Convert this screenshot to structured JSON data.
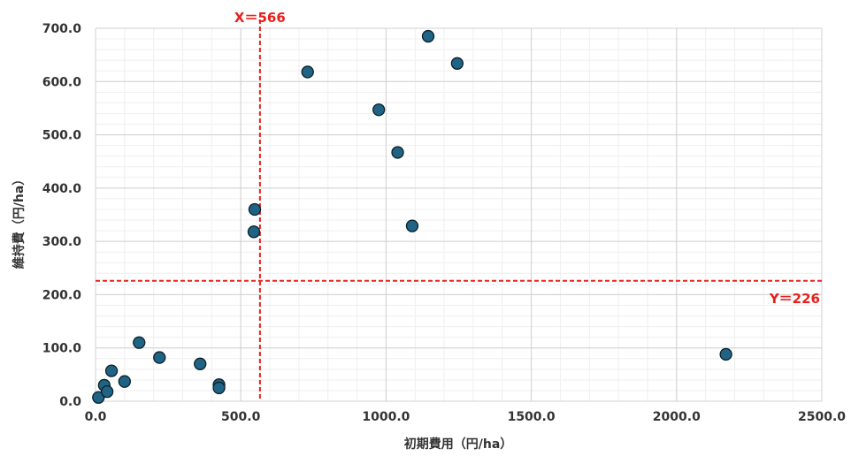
{
  "chart_data": {
    "type": "scatter",
    "title": "",
    "xlabel": "初期費用（円/ha）",
    "ylabel": "維持費（円/ha）",
    "xlim": [
      0,
      2500
    ],
    "ylim": [
      0,
      700
    ],
    "x_ticks": [
      "0.0",
      "500.0",
      "1000.0",
      "1500.0",
      "2000.0",
      "2500.0"
    ],
    "y_ticks": [
      "0.0",
      "100.0",
      "200.0",
      "300.0",
      "400.0",
      "500.0",
      "600.0",
      "700.0"
    ],
    "grid": true,
    "marker_color": "#1f6485",
    "series": [
      {
        "points": [
          [
            10,
            7
          ],
          [
            30,
            30
          ],
          [
            40,
            18
          ],
          [
            55,
            57
          ],
          [
            100,
            37
          ],
          [
            150,
            110
          ],
          [
            220,
            82
          ],
          [
            360,
            70
          ],
          [
            425,
            31
          ],
          [
            425,
            25
          ],
          [
            545,
            318
          ],
          [
            548,
            360
          ],
          [
            730,
            618
          ],
          [
            975,
            547
          ],
          [
            1040,
            467
          ],
          [
            1090,
            329
          ],
          [
            1145,
            685
          ],
          [
            1245,
            634
          ],
          [
            2170,
            88
          ]
        ]
      }
    ],
    "reference_lines": [
      {
        "axis": "x",
        "value": 566,
        "label": "X＝566",
        "color": "#e8201c"
      },
      {
        "axis": "y",
        "value": 226,
        "label": "Y＝226",
        "color": "#e8201c"
      }
    ]
  }
}
